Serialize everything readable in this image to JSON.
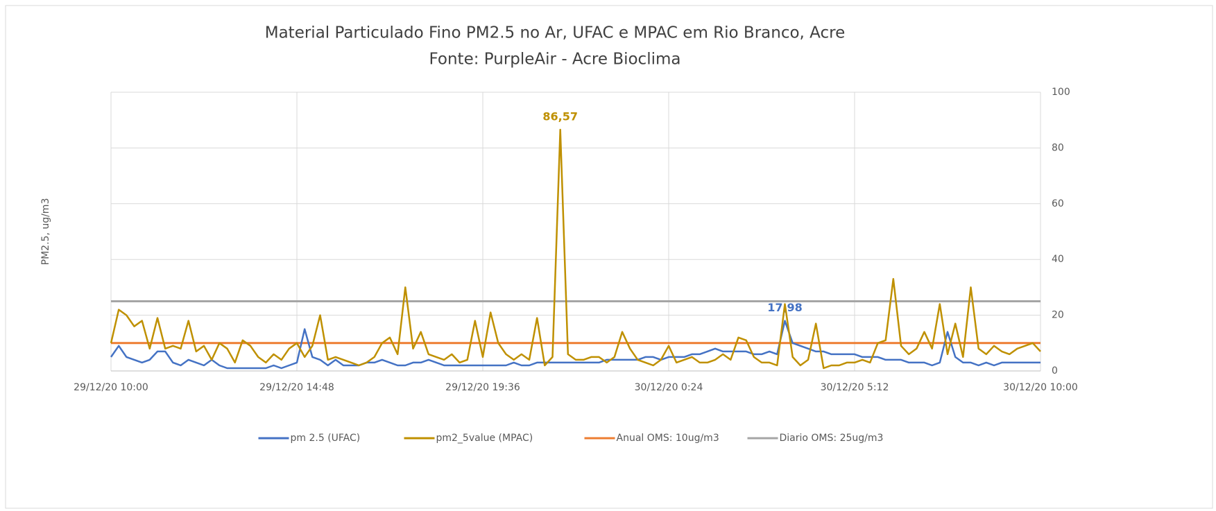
{
  "chart_data": {
    "type": "line",
    "title": "Material Particulado Fino PM2.5 no Ar,  UFAC e  MPAC em Rio Branco, Acre",
    "subtitle": "Fonte: PurpleAir - Acre Bioclima",
    "y_label": "PM2.5, ug/m3",
    "y_axis_side": "right",
    "grid": true,
    "legend": "bottom",
    "ylim": [
      0,
      100
    ],
    "yticks": [
      0,
      20,
      40,
      60,
      80,
      100
    ],
    "categories": [
      "29/12/20 10:00",
      null,
      null,
      null,
      null,
      null,
      null,
      null,
      null,
      null,
      null,
      null,
      null,
      null,
      null,
      null,
      null,
      null,
      null,
      null,
      null,
      null,
      null,
      null,
      "29/12/20 14:48",
      null,
      null,
      null,
      null,
      null,
      null,
      null,
      null,
      null,
      null,
      null,
      null,
      null,
      null,
      null,
      null,
      null,
      null,
      null,
      null,
      null,
      null,
      null,
      "29/12/20 19:36",
      null,
      null,
      null,
      null,
      null,
      null,
      null,
      null,
      null,
      null,
      null,
      null,
      null,
      null,
      null,
      null,
      null,
      null,
      null,
      null,
      null,
      null,
      null,
      "30/12/20 0:24",
      null,
      null,
      null,
      null,
      null,
      null,
      null,
      null,
      null,
      null,
      null,
      null,
      null,
      null,
      null,
      null,
      null,
      null,
      null,
      null,
      null,
      null,
      null,
      "30/12/20 5:12",
      null,
      null,
      null,
      null,
      null,
      null,
      null,
      null,
      null,
      null,
      null,
      null,
      null,
      null,
      null,
      null,
      null,
      null,
      null,
      null,
      null,
      null,
      null,
      "30/12/20 10:00"
    ],
    "series": [
      {
        "name": "pm 2.5 (UFAC)",
        "color": "#4472c4",
        "values": [
          5,
          9,
          5,
          4,
          3,
          4,
          7,
          7,
          3,
          2,
          4,
          3,
          2,
          4,
          2,
          1,
          1,
          1,
          1,
          1,
          1,
          2,
          1,
          2,
          3,
          15,
          5,
          4,
          2,
          4,
          2,
          2,
          2,
          3,
          3,
          4,
          3,
          2,
          2,
          3,
          3,
          4,
          3,
          2,
          2,
          2,
          2,
          2,
          2,
          2,
          2,
          2,
          3,
          2,
          2,
          3,
          3,
          3,
          3,
          3,
          3,
          3,
          3,
          3,
          4,
          4,
          4,
          4,
          4,
          5,
          5,
          4,
          5,
          5,
          5,
          6,
          6,
          7,
          8,
          7,
          7,
          7,
          7,
          6,
          6,
          7,
          6,
          17.98,
          10,
          9,
          8,
          7,
          7,
          6,
          6,
          6,
          6,
          5,
          5,
          5,
          4,
          4,
          4,
          3,
          3,
          3,
          2,
          3,
          14,
          5,
          3,
          3,
          2,
          3,
          2,
          3,
          3,
          3,
          3,
          3,
          3
        ],
        "value_labels": [
          null,
          null,
          null,
          null,
          null,
          null,
          null,
          null,
          null,
          null,
          null,
          null,
          null,
          null,
          null,
          null,
          null,
          null,
          null,
          null,
          null,
          null,
          null,
          null,
          null,
          null,
          null,
          null,
          null,
          null,
          null,
          null,
          null,
          null,
          null,
          null,
          null,
          null,
          null,
          null,
          null,
          null,
          null,
          null,
          null,
          null,
          null,
          null,
          null,
          null,
          null,
          null,
          null,
          null,
          null,
          null,
          null,
          null,
          null,
          null,
          null,
          null,
          null,
          null,
          null,
          null,
          null,
          null,
          null,
          null,
          null,
          null,
          null,
          null,
          null,
          null,
          null,
          null,
          null,
          null,
          null,
          null,
          null,
          null,
          null,
          null,
          null,
          "17,98",
          null,
          null,
          null,
          null,
          null,
          null,
          null,
          null,
          null,
          null,
          null,
          null,
          null,
          null,
          null,
          null,
          null,
          null,
          null,
          null,
          null,
          null,
          null,
          null,
          null,
          null,
          null,
          null,
          null,
          null,
          null,
          null,
          null
        ]
      },
      {
        "name": "pm2_5value (MPAC)",
        "color": "#bf9000",
        "values": [
          10,
          22,
          20,
          16,
          18,
          8,
          19,
          8,
          9,
          8,
          18,
          7,
          9,
          4,
          10,
          8,
          3,
          11,
          9,
          5,
          3,
          6,
          4,
          8,
          10,
          5,
          9,
          20,
          4,
          5,
          4,
          3,
          2,
          3,
          5,
          10,
          12,
          6,
          30,
          8,
          14,
          6,
          5,
          4,
          6,
          3,
          4,
          18,
          5,
          21,
          10,
          6,
          4,
          6,
          4,
          19,
          2,
          5,
          86.57,
          6,
          4,
          4,
          5,
          5,
          3,
          5,
          14,
          8,
          4,
          3,
          2,
          4,
          9,
          3,
          4,
          5,
          3,
          3,
          4,
          6,
          4,
          12,
          11,
          5,
          3,
          3,
          2,
          24,
          5,
          2,
          4,
          17,
          1,
          2,
          2,
          3,
          3,
          4,
          3,
          10,
          11,
          33,
          9,
          6,
          8,
          14,
          8,
          24,
          6,
          17,
          5,
          30,
          8,
          6,
          9,
          7,
          6,
          8,
          9,
          10,
          7
        ],
        "value_labels": [
          null,
          null,
          null,
          null,
          null,
          null,
          null,
          null,
          null,
          null,
          null,
          null,
          null,
          null,
          null,
          null,
          null,
          null,
          null,
          null,
          null,
          null,
          null,
          null,
          null,
          null,
          null,
          null,
          null,
          null,
          null,
          null,
          null,
          null,
          null,
          null,
          null,
          null,
          null,
          null,
          null,
          null,
          null,
          null,
          null,
          null,
          null,
          null,
          null,
          null,
          null,
          null,
          null,
          null,
          null,
          null,
          null,
          null,
          "86,57",
          null,
          null,
          null,
          null,
          null,
          null,
          null,
          null,
          null,
          null,
          null,
          null,
          null,
          null,
          null,
          null,
          null,
          null,
          null,
          null,
          null,
          null,
          null,
          null,
          null,
          null,
          null,
          null,
          null,
          null,
          null,
          null,
          null,
          null,
          null,
          null,
          null,
          null,
          null,
          null,
          null,
          null,
          null,
          null,
          null,
          null,
          null,
          null,
          null,
          null,
          null,
          null,
          null,
          null,
          null,
          null,
          null,
          null,
          null,
          null,
          null,
          null
        ]
      }
    ],
    "reference_lines": [
      {
        "name": "Anual OMS: 10ug/m3",
        "color": "#ed7d31",
        "value": 10
      },
      {
        "name": "Diario OMS: 25ug/m3",
        "color": "#a5a5a5",
        "value": 25
      }
    ]
  }
}
